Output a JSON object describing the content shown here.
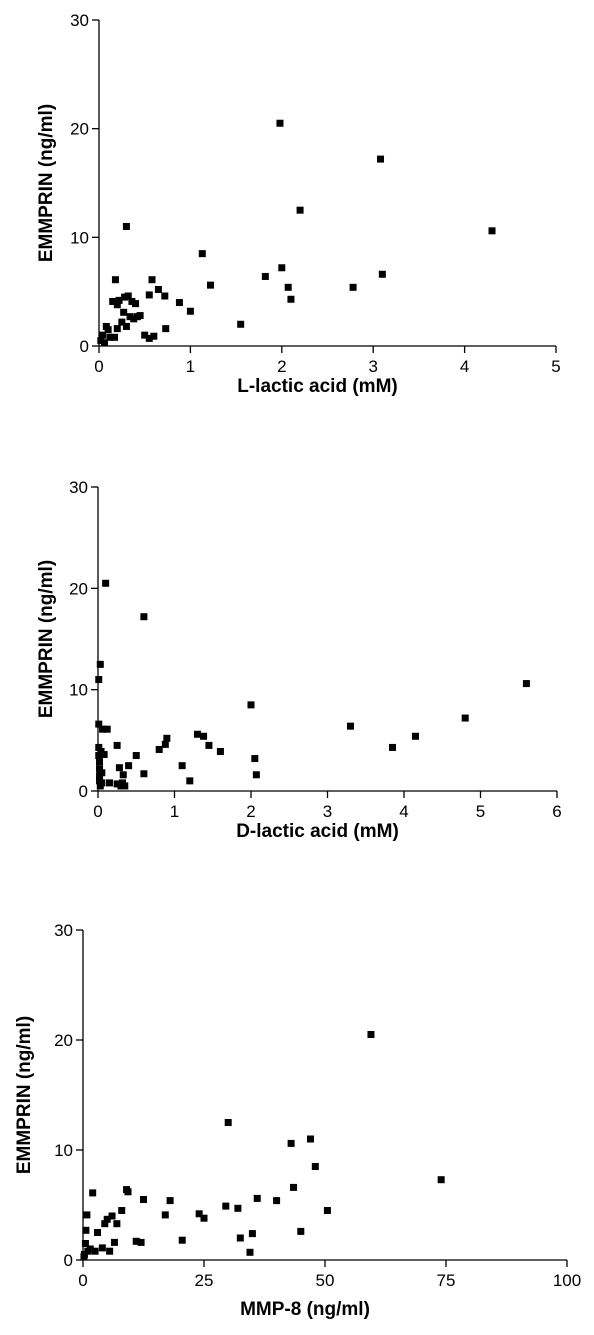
{
  "chart_data": [
    {
      "type": "scatter",
      "xlabel": "L-lactic acid (mM)",
      "ylabel": "EMMPRIN (ng/ml)",
      "xlim": [
        0,
        5
      ],
      "ylim": [
        0,
        30
      ],
      "xticks": [
        "0",
        "1",
        "2",
        "3",
        "4",
        "5"
      ],
      "yticks": [
        "0",
        "10",
        "20",
        "30"
      ],
      "grid": false,
      "x": [
        0.02,
        0.04,
        0.06,
        0.08,
        0.1,
        0.12,
        0.15,
        0.17,
        0.18,
        0.2,
        0.2,
        0.22,
        0.25,
        0.27,
        0.28,
        0.3,
        0.3,
        0.32,
        0.34,
        0.36,
        0.38,
        0.4,
        0.42,
        0.45,
        0.5,
        0.55,
        0.55,
        0.58,
        0.6,
        0.65,
        0.72,
        0.73,
        0.88,
        1.0,
        1.13,
        1.22,
        1.55,
        1.82,
        1.98,
        2.0,
        2.07,
        2.1,
        2.2,
        2.78,
        3.08,
        3.1,
        4.3
      ],
      "y": [
        0.5,
        1.0,
        0.3,
        1.8,
        1.5,
        0.8,
        4.1,
        0.8,
        6.1,
        1.6,
        3.8,
        4.2,
        2.2,
        3.1,
        4.5,
        11.0,
        1.8,
        4.6,
        2.7,
        4.1,
        2.5,
        3.9,
        2.7,
        2.8,
        1.0,
        0.7,
        4.7,
        6.1,
        0.9,
        5.2,
        4.6,
        1.6,
        4.0,
        3.2,
        8.5,
        5.6,
        2.0,
        6.4,
        20.5,
        7.2,
        5.4,
        4.3,
        12.5,
        5.4,
        17.2,
        6.6,
        10.6
      ]
    },
    {
      "type": "scatter",
      "xlabel": "D-lactic acid (mM)",
      "ylabel": "EMMPRIN (ng/ml)",
      "xlim": [
        0,
        6
      ],
      "ylim": [
        0,
        30
      ],
      "xticks": [
        "0",
        "1",
        "2",
        "3",
        "4",
        "5",
        "6"
      ],
      "yticks": [
        "0",
        "10",
        "20",
        "30"
      ],
      "grid": false,
      "x": [
        0.01,
        0.01,
        0.01,
        0.01,
        0.02,
        0.02,
        0.02,
        0.02,
        0.03,
        0.03,
        0.04,
        0.05,
        0.05,
        0.06,
        0.08,
        0.1,
        0.12,
        0.15,
        0.25,
        0.25,
        0.28,
        0.3,
        0.32,
        0.33,
        0.35,
        0.4,
        0.5,
        0.6,
        0.6,
        0.8,
        0.88,
        0.9,
        1.1,
        1.2,
        1.3,
        1.38,
        1.45,
        1.6,
        2.0,
        2.05,
        2.07,
        3.3,
        3.85,
        4.15,
        4.8,
        5.6
      ],
      "y": [
        11.0,
        6.6,
        4.3,
        3.5,
        2.9,
        2.2,
        1.5,
        1.0,
        0.5,
        12.5,
        3.9,
        1.8,
        0.8,
        6.1,
        3.6,
        20.5,
        6.1,
        0.8,
        4.5,
        0.7,
        2.3,
        0.5,
        0.8,
        1.6,
        0.5,
        2.5,
        3.5,
        1.7,
        17.2,
        4.1,
        4.6,
        5.2,
        2.5,
        1.0,
        5.6,
        5.4,
        4.5,
        3.9,
        8.5,
        3.2,
        1.6,
        6.4,
        4.3,
        5.4,
        7.2,
        10.6
      ]
    },
    {
      "type": "scatter",
      "xlabel": "MMP-8 (ng/ml)",
      "ylabel": "EMMPRIN (ng/ml)",
      "xlim": [
        0,
        100
      ],
      "ylim": [
        0,
        30
      ],
      "xticks": [
        "0",
        "25",
        "50",
        "75",
        "100"
      ],
      "yticks": [
        "0",
        "10",
        "20",
        "30"
      ],
      "grid": false,
      "x": [
        0.2,
        0.3,
        0.5,
        0.6,
        0.8,
        1.0,
        1.5,
        2.0,
        2.5,
        3.0,
        4.0,
        4.5,
        5.0,
        5.5,
        6.0,
        6.5,
        7.0,
        8.0,
        9.0,
        9.3,
        11.0,
        12.0,
        12.5,
        17.0,
        18.0,
        20.5,
        24.0,
        25.0,
        29.5,
        30.0,
        32.0,
        32.5,
        34.5,
        35.0,
        36.0,
        40.0,
        43.0,
        43.5,
        45.0,
        47.0,
        48.0,
        50.5,
        59.5,
        74.0
      ],
      "y": [
        0.3,
        0.5,
        1.5,
        2.7,
        4.1,
        0.8,
        1.0,
        6.1,
        0.8,
        2.5,
        1.1,
        3.3,
        3.7,
        0.8,
        4.0,
        1.6,
        3.3,
        4.5,
        6.4,
        6.2,
        1.7,
        1.6,
        5.5,
        4.1,
        5.4,
        1.8,
        4.2,
        3.8,
        4.9,
        12.5,
        4.7,
        2.0,
        0.7,
        2.4,
        5.6,
        5.4,
        10.6,
        6.6,
        2.6,
        11.0,
        8.5,
        4.5,
        20.5,
        7.3
      ]
    }
  ]
}
